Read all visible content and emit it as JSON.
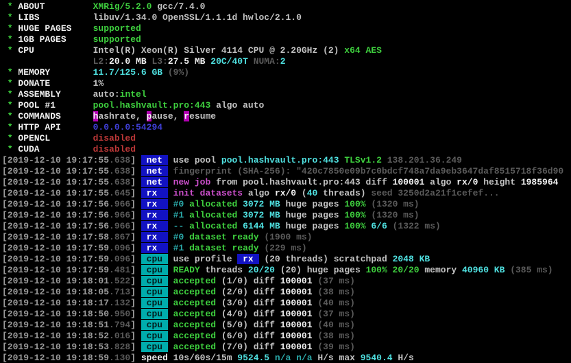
{
  "app": {
    "name": "XMRig",
    "version": "XMRig/5.2.0",
    "view": "miner-terminal-output"
  },
  "palette": {
    "term_bg": "#000000",
    "ts": "#9a9a9a",
    "tsd": "#5a5a5a",
    "w": "#c2c2c2",
    "wb": "#f0f0f0",
    "g": "#3ecf3e",
    "c": "#4fe0e0",
    "cd": "#2aa8a8",
    "gy": "#5a5a5a",
    "m": "#cc4fcc",
    "r": "#bd3838",
    "bl": "#3f3fd6",
    "mbg_bg": "#b300b3",
    "mbg_fg": "#f0f0f0",
    "net_bg": "#1212c2",
    "net_fg": "#ffffff",
    "cpu_bg": "#00acac",
    "cpu_fg": "#001f1f"
  },
  "terminal": {
    "lines": [
      [
        [
          "g",
          " * "
        ],
        [
          "wb",
          "ABOUT         "
        ],
        [
          "g",
          "XMRig/5.2.0"
        ],
        [
          "w",
          " gcc/7.4.0"
        ]
      ],
      [
        [
          "g",
          " * "
        ],
        [
          "wb",
          "LIBS          "
        ],
        [
          "w",
          "libuv/1.34.0 OpenSSL/1.1.1d hwloc/2.1.0"
        ]
      ],
      [
        [
          "g",
          " * "
        ],
        [
          "wb",
          "HUGE PAGES    "
        ],
        [
          "g",
          "supported"
        ]
      ],
      [
        [
          "g",
          " * "
        ],
        [
          "wb",
          "1GB PAGES     "
        ],
        [
          "g",
          "supported"
        ]
      ],
      [
        [
          "g",
          " * "
        ],
        [
          "wb",
          "CPU           "
        ],
        [
          "w",
          "Intel(R) Xeon(R) Silver 4114 CPU @ 2.20GHz (2) "
        ],
        [
          "g",
          "x64 AES"
        ]
      ],
      [
        [
          "w",
          "                 "
        ],
        [
          "gy",
          "L2:"
        ],
        [
          "wb",
          "20.0 MB "
        ],
        [
          "gy",
          "L3:"
        ],
        [
          "wb",
          "27.5 MB "
        ],
        [
          "c",
          "20C/40T "
        ],
        [
          "gy",
          "NUMA:"
        ],
        [
          "c",
          "2"
        ]
      ],
      [
        [
          "g",
          " * "
        ],
        [
          "wb",
          "MEMORY        "
        ],
        [
          "c",
          "11.7/125.6 GB "
        ],
        [
          "gy",
          "(9%)"
        ]
      ],
      [
        [
          "g",
          " * "
        ],
        [
          "wb",
          "DONATE        "
        ],
        [
          "w",
          "1%"
        ]
      ],
      [
        [
          "g",
          " * "
        ],
        [
          "wb",
          "ASSEMBLY      "
        ],
        [
          "w",
          "auto:"
        ],
        [
          "g",
          "intel"
        ]
      ],
      [
        [
          "g",
          " * "
        ],
        [
          "wb",
          "POOL #1       "
        ],
        [
          "g",
          "pool.hashvault.pro:443"
        ],
        [
          "w",
          " algo auto"
        ]
      ],
      [
        [
          "g",
          " * "
        ],
        [
          "wb",
          "COMMANDS      "
        ],
        [
          "mbg",
          "h"
        ],
        [
          "w",
          "ashrate, "
        ],
        [
          "mbg",
          "p"
        ],
        [
          "w",
          "ause, "
        ],
        [
          "mbg",
          "r"
        ],
        [
          "w",
          "esume"
        ]
      ],
      [
        [
          "g",
          " * "
        ],
        [
          "wb",
          "HTTP API      "
        ],
        [
          "bl",
          "0.0.0.0:54294"
        ]
      ],
      [
        [
          "g",
          " * "
        ],
        [
          "wb",
          "OPENCL        "
        ],
        [
          "r",
          "disabled"
        ]
      ],
      [
        [
          "g",
          " * "
        ],
        [
          "wb",
          "CUDA          "
        ],
        [
          "r",
          "disabled"
        ]
      ],
      [
        [
          "ts",
          "[2019-12-10 19:17:55"
        ],
        [
          "tsd",
          ".638"
        ],
        [
          "ts",
          "] "
        ],
        [
          "tagnet",
          " net "
        ],
        [
          "w",
          " use pool "
        ],
        [
          "c",
          "pool.hashvault.pro:443 "
        ],
        [
          "g",
          "TLSv1.2 "
        ],
        [
          "gy",
          "138.201.36.249"
        ]
      ],
      [
        [
          "ts",
          "[2019-12-10 19:17:55"
        ],
        [
          "tsd",
          ".638"
        ],
        [
          "ts",
          "] "
        ],
        [
          "tagnet",
          " net "
        ],
        [
          "gy",
          " fingerprint (SHA-256): \"420c7850e09b7c0bdcf748a7da9eb3647daf8515718f36d90"
        ]
      ],
      [
        [
          "ts",
          "[2019-12-10 19:17:55"
        ],
        [
          "tsd",
          ".638"
        ],
        [
          "ts",
          "] "
        ],
        [
          "tagnet",
          " net "
        ],
        [
          "m",
          " new job"
        ],
        [
          "w",
          " from pool.hashvault.pro:443 diff "
        ],
        [
          "wb",
          "100001"
        ],
        [
          "w",
          " algo "
        ],
        [
          "wb",
          "rx/0"
        ],
        [
          "w",
          " height "
        ],
        [
          "wb",
          "1985964"
        ]
      ],
      [
        [
          "ts",
          "[2019-12-10 19:17:55"
        ],
        [
          "tsd",
          ".645"
        ],
        [
          "ts",
          "] "
        ],
        [
          "tagnet",
          " rx  "
        ],
        [
          "m",
          " init datasets"
        ],
        [
          "w",
          " algo "
        ],
        [
          "wb",
          "rx/0 "
        ],
        [
          "w",
          "("
        ],
        [
          "c",
          "40"
        ],
        [
          "w",
          " threads)"
        ],
        [
          "gy",
          " seed 3250d2a21f1cefef..."
        ]
      ],
      [
        [
          "ts",
          "[2019-12-10 19:17:56"
        ],
        [
          "tsd",
          ".966"
        ],
        [
          "ts",
          "] "
        ],
        [
          "tagnet",
          " rx  "
        ],
        [
          "cd",
          " #0"
        ],
        [
          "g",
          " allocated "
        ],
        [
          "c",
          "3072 MB "
        ],
        [
          "w",
          "huge pages "
        ],
        [
          "g",
          "100% "
        ],
        [
          "gy",
          "(1320 ms)"
        ]
      ],
      [
        [
          "ts",
          "[2019-12-10 19:17:56"
        ],
        [
          "tsd",
          ".966"
        ],
        [
          "ts",
          "] "
        ],
        [
          "tagnet",
          " rx  "
        ],
        [
          "cd",
          " #1"
        ],
        [
          "g",
          " allocated "
        ],
        [
          "c",
          "3072 MB "
        ],
        [
          "w",
          "huge pages "
        ],
        [
          "g",
          "100% "
        ],
        [
          "gy",
          "(1320 ms)"
        ]
      ],
      [
        [
          "ts",
          "[2019-12-10 19:17:56"
        ],
        [
          "tsd",
          ".966"
        ],
        [
          "ts",
          "] "
        ],
        [
          "tagnet",
          " rx  "
        ],
        [
          "cd",
          " --"
        ],
        [
          "g",
          " allocated "
        ],
        [
          "c",
          "6144 MB "
        ],
        [
          "w",
          "huge pages "
        ],
        [
          "g",
          "100% "
        ],
        [
          "c",
          "6/6 "
        ],
        [
          "gy",
          "(1322 ms)"
        ]
      ],
      [
        [
          "ts",
          "[2019-12-10 19:17:58"
        ],
        [
          "tsd",
          ".867"
        ],
        [
          "ts",
          "] "
        ],
        [
          "tagnet",
          " rx  "
        ],
        [
          "cd",
          " #0"
        ],
        [
          "g",
          " dataset ready "
        ],
        [
          "gy",
          "(1900 ms)"
        ]
      ],
      [
        [
          "ts",
          "[2019-12-10 19:17:59"
        ],
        [
          "tsd",
          ".096"
        ],
        [
          "ts",
          "] "
        ],
        [
          "tagnet",
          " rx  "
        ],
        [
          "cd",
          " #1"
        ],
        [
          "g",
          " dataset ready "
        ],
        [
          "gy",
          "(229 ms)"
        ]
      ],
      [
        [
          "ts",
          "[2019-12-10 19:17:59"
        ],
        [
          "tsd",
          ".096"
        ],
        [
          "ts",
          "] "
        ],
        [
          "tagcpu",
          " cpu "
        ],
        [
          "w",
          " use profile "
        ],
        [
          "rxin",
          " rx "
        ],
        [
          "w",
          " (20 threads) scratchpad "
        ],
        [
          "c",
          "2048 KB"
        ]
      ],
      [
        [
          "ts",
          "[2019-12-10 19:17:59"
        ],
        [
          "tsd",
          ".481"
        ],
        [
          "ts",
          "] "
        ],
        [
          "tagcpu",
          " cpu "
        ],
        [
          "g",
          " READY"
        ],
        [
          "w",
          " threads "
        ],
        [
          "c",
          "20/20"
        ],
        [
          "w",
          " (20) huge pages "
        ],
        [
          "g",
          "100% 20/20"
        ],
        [
          "w",
          " memory "
        ],
        [
          "c",
          "40960 KB "
        ],
        [
          "gy",
          "(385 ms)"
        ]
      ],
      [
        [
          "ts",
          "[2019-12-10 19:18:01"
        ],
        [
          "tsd",
          ".522"
        ],
        [
          "ts",
          "] "
        ],
        [
          "tagcpu",
          " cpu "
        ],
        [
          "g",
          " accepted"
        ],
        [
          "w",
          " (1/0) diff "
        ],
        [
          "wb",
          "100001"
        ],
        [
          "w",
          " "
        ],
        [
          "gy",
          "(37 ms)"
        ]
      ],
      [
        [
          "ts",
          "[2019-12-10 19:18:05"
        ],
        [
          "tsd",
          ".713"
        ],
        [
          "ts",
          "] "
        ],
        [
          "tagcpu",
          " cpu "
        ],
        [
          "g",
          " accepted"
        ],
        [
          "w",
          " (2/0) diff "
        ],
        [
          "wb",
          "100001"
        ],
        [
          "w",
          " "
        ],
        [
          "gy",
          "(38 ms)"
        ]
      ],
      [
        [
          "ts",
          "[2019-12-10 19:18:17"
        ],
        [
          "tsd",
          ".132"
        ],
        [
          "ts",
          "] "
        ],
        [
          "tagcpu",
          " cpu "
        ],
        [
          "g",
          " accepted"
        ],
        [
          "w",
          " (3/0) diff "
        ],
        [
          "wb",
          "100001"
        ],
        [
          "w",
          " "
        ],
        [
          "gy",
          "(40 ms)"
        ]
      ],
      [
        [
          "ts",
          "[2019-12-10 19:18:50"
        ],
        [
          "tsd",
          ".950"
        ],
        [
          "ts",
          "] "
        ],
        [
          "tagcpu",
          " cpu "
        ],
        [
          "g",
          " accepted"
        ],
        [
          "w",
          " (4/0) diff "
        ],
        [
          "wb",
          "100001"
        ],
        [
          "w",
          " "
        ],
        [
          "gy",
          "(37 ms)"
        ]
      ],
      [
        [
          "ts",
          "[2019-12-10 19:18:51"
        ],
        [
          "tsd",
          ".794"
        ],
        [
          "ts",
          "] "
        ],
        [
          "tagcpu",
          " cpu "
        ],
        [
          "g",
          " accepted"
        ],
        [
          "w",
          " (5/0) diff "
        ],
        [
          "wb",
          "100001"
        ],
        [
          "w",
          " "
        ],
        [
          "gy",
          "(40 ms)"
        ]
      ],
      [
        [
          "ts",
          "[2019-12-10 19:18:52"
        ],
        [
          "tsd",
          ".016"
        ],
        [
          "ts",
          "] "
        ],
        [
          "tagcpu",
          " cpu "
        ],
        [
          "g",
          " accepted"
        ],
        [
          "w",
          " (6/0) diff "
        ],
        [
          "wb",
          "100001"
        ],
        [
          "w",
          " "
        ],
        [
          "gy",
          "(38 ms)"
        ]
      ],
      [
        [
          "ts",
          "[2019-12-10 19:18:53"
        ],
        [
          "tsd",
          ".828"
        ],
        [
          "ts",
          "] "
        ],
        [
          "tagcpu",
          " cpu "
        ],
        [
          "g",
          " accepted"
        ],
        [
          "w",
          " (7/0) diff "
        ],
        [
          "wb",
          "100001"
        ],
        [
          "w",
          " "
        ],
        [
          "gy",
          "(39 ms)"
        ]
      ],
      [
        [
          "ts",
          "[2019-12-10 19:18:59"
        ],
        [
          "tsd",
          ".130"
        ],
        [
          "ts",
          "] "
        ],
        [
          "wb",
          "speed"
        ],
        [
          "w",
          " 10s/60s/15m "
        ],
        [
          "c",
          "9524.5 "
        ],
        [
          "cd",
          "n/a n/a "
        ],
        [
          "w",
          "H/s max "
        ],
        [
          "c",
          "9540.4 "
        ],
        [
          "w",
          "H/s"
        ]
      ]
    ]
  }
}
